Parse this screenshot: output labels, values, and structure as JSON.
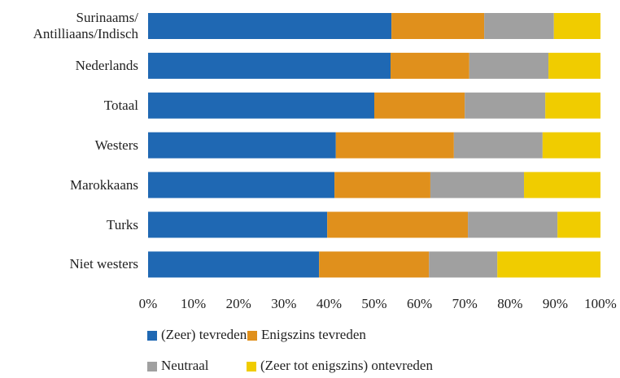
{
  "chart_data": {
    "type": "stacked_barh",
    "categories": [
      "Surinaams/\nAntilliaans/Indisch",
      "Nederlands",
      "Totaal",
      "Westers",
      "Marokkaans",
      "Turks",
      "Niet westers"
    ],
    "series": [
      {
        "name": "(Zeer) tevreden",
        "color": "#1f68b3",
        "values": [
          53.8,
          53.6,
          50.0,
          41.5,
          41.2,
          39.6,
          37.8
        ]
      },
      {
        "name": "Enigszins tevreden",
        "color": "#e0901c",
        "values": [
          20.5,
          17.4,
          20.0,
          26.1,
          21.2,
          31.1,
          24.3
        ]
      },
      {
        "name": "Neutraal",
        "color": "#a0a0a0",
        "values": [
          15.4,
          17.5,
          17.8,
          19.6,
          20.7,
          19.8,
          15.1
        ]
      },
      {
        "name": "(Zeer tot enigszins) ontevreden",
        "color": "#f0cc00",
        "values": [
          10.3,
          11.5,
          12.2,
          12.8,
          16.9,
          9.5,
          22.8
        ]
      }
    ],
    "xlim": [
      0,
      100
    ],
    "xticks": [
      {
        "value": 0,
        "label": "0%"
      },
      {
        "value": 10,
        "label": "10%"
      },
      {
        "value": 20,
        "label": "20%"
      },
      {
        "value": 30,
        "label": "30%"
      },
      {
        "value": 40,
        "label": "40%"
      },
      {
        "value": 50,
        "label": "50%"
      },
      {
        "value": 60,
        "label": "60%"
      },
      {
        "value": 70,
        "label": "70%"
      },
      {
        "value": 80,
        "label": "80%"
      },
      {
        "value": 90,
        "label": "90%"
      },
      {
        "value": 100,
        "label": "100%"
      }
    ],
    "legend": "bottom"
  }
}
